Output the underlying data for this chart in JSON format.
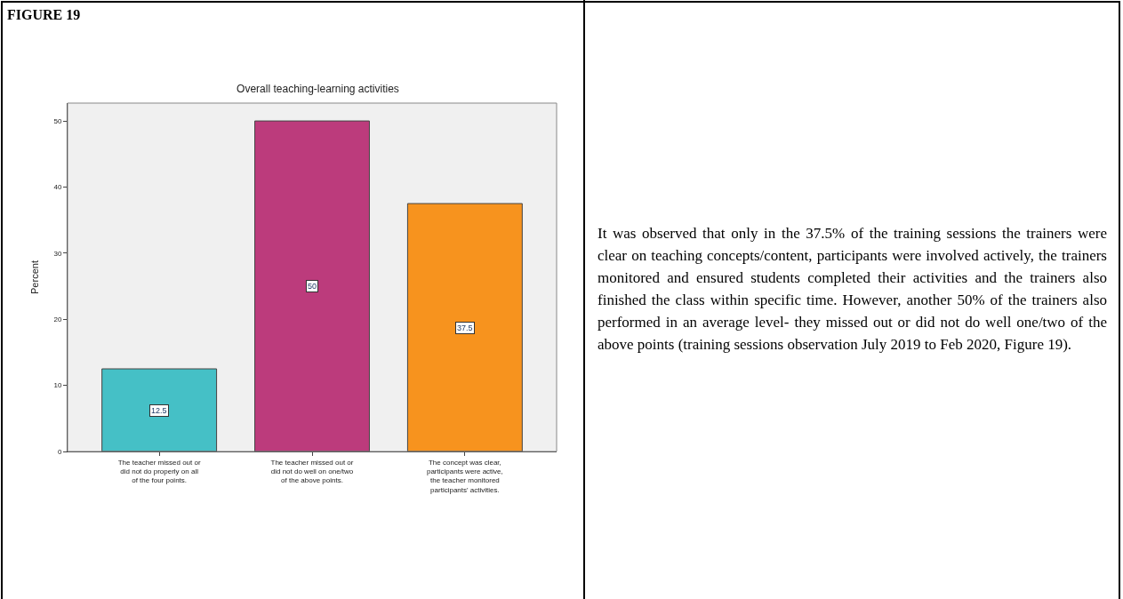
{
  "chart_data": {
    "type": "bar",
    "title": "Overall teaching-learning activities",
    "ylabel": "Percent",
    "categories": [
      "The teacher missed out or did not do properly on all of the four points.",
      "The teacher missed out or did not do well on one/two of the above points.",
      "The concept was clear, participants were active, the teacher monitored participants' activities."
    ],
    "values": [
      12.5,
      50,
      37.5
    ],
    "colors": [
      "#45c0c6",
      "#bc3b7c",
      "#f7931e"
    ],
    "ylim": [
      0,
      52.7
    ],
    "yticks": [
      0,
      10,
      20,
      30,
      40,
      50
    ],
    "grid": false,
    "data_labels": true,
    "annotations": [
      "FIGURE 19",
      "It was observed that only in the 37.5% of the training sessions the trainers were clear on teaching concepts/content, participants were involved actively, the trainers monitored and ensured students completed their activities and the trainers also finished the class within specific time. However, another 50% of the trainers also performed in an average level- they missed out or did not do well one/two of the above points (training sessions observation July 2019 to Feb 2020, Figure 19)."
    ]
  }
}
